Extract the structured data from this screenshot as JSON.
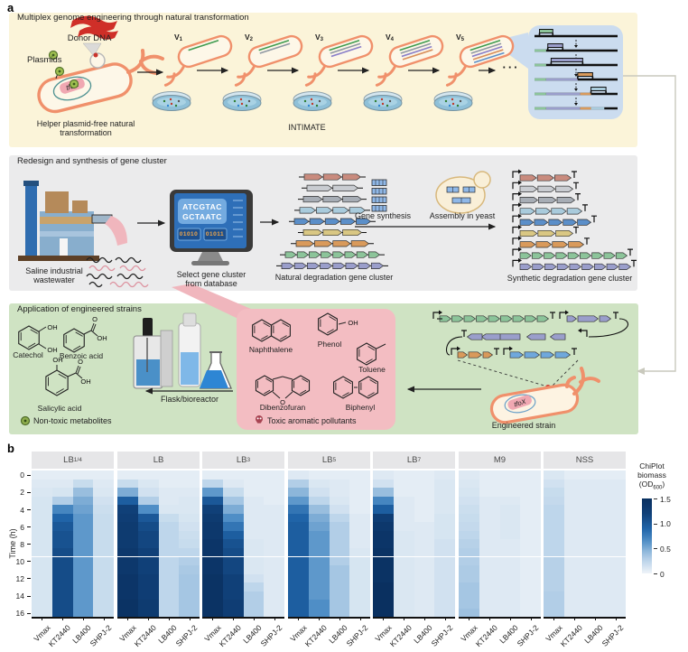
{
  "panel_a": {
    "label": "a",
    "genome_engineering": {
      "title": "Multiplex genome engineering through natural transformation",
      "donor_dna": "Donor DNA",
      "plasmids": "Plasmids",
      "tfox": "tfoX",
      "helper_line1": "Helper plasmid-free natural",
      "helper_line2": "transformation",
      "intimate": "INTIMATE",
      "ellipsis": "···",
      "variants": [
        {
          "base": "V",
          "sub": "1",
          "lines": 1
        },
        {
          "base": "V",
          "sub": "2",
          "lines": 2
        },
        {
          "base": "V",
          "sub": "3",
          "lines": 3
        },
        {
          "base": "V",
          "sub": "4",
          "lines": 4
        },
        {
          "base": "V",
          "sub": "5",
          "lines": 5
        }
      ],
      "variant_line_colors": [
        "#3f9b4f",
        "#8f98a3",
        "#8a7fc9",
        "#d98f5a",
        "#5b8fc9"
      ]
    },
    "redesign": {
      "title": "Redesign and synthesis of gene cluster",
      "wastewater_line1": "Saline industrial",
      "wastewater_line2": "wastewater",
      "screen_lines": [
        "ATCGTAC",
        "GCTAATC"
      ],
      "binary": [
        "01010",
        "01011"
      ],
      "select_line1": "Select gene cluster",
      "select_line2": "from database",
      "natural_label": "Natural degradation gene cluster",
      "gene_synthesis": "Gene synthesis",
      "assembly": "Assembly in yeast",
      "synthetic_label": "Synthetic degradation gene cluster",
      "cluster_colors": [
        "#c98b7e",
        "#c9ccd1",
        "#a7adb5",
        "#a9cbdc",
        "#5b8fc9",
        "#d9c783",
        "#d99a5b",
        "#8cc49a",
        "#9a9ecb"
      ],
      "natural_gene_counts": [
        3,
        2,
        3,
        4,
        5,
        3,
        4,
        8,
        8
      ],
      "synthetic_gene_counts": [
        3,
        3,
        3,
        4,
        5,
        3,
        4,
        9,
        9
      ],
      "natural_row_widths": [
        62,
        56,
        64,
        72,
        84,
        64,
        80,
        104,
        112
      ],
      "synthetic_row_widths": [
        56,
        58,
        60,
        68,
        78,
        58,
        70,
        118,
        122
      ]
    },
    "application": {
      "title": "Application of engineered strains",
      "metabolites": [
        {
          "name": "Catechol"
        },
        {
          "name": "Benzoic acid"
        },
        {
          "name": "Salicylic acid"
        }
      ],
      "functional_groups": {
        "oh": "OH",
        "o": "O"
      },
      "nontoxic": "Non-toxic metabolites",
      "flask": "Flask/bioreactor",
      "pollutants": [
        {
          "name": "Naphthalene"
        },
        {
          "name": "Phenol"
        },
        {
          "name": "Toluene"
        },
        {
          "name": "Dibenzofuran"
        },
        {
          "name": "Biphenyl"
        }
      ],
      "toxic": "Toxic aromatic pollutants",
      "engineered": "Engineered strain",
      "tfox": "tfoX"
    },
    "colors": {
      "band1": "#fbf4d9",
      "band2": "#ebebec",
      "band3": "#cfe3c3",
      "pink_box": "#f3bdc2",
      "inset": "#cbdcef",
      "bacterium_outline": "#f0906b",
      "bacterium_fill": "#fdf7e8"
    }
  },
  "chart_data": {
    "type": "heatmap",
    "panel_label": "b",
    "facets": [
      {
        "base": "LB",
        "sub": "1/4"
      },
      {
        "base": "LB",
        "sub": ""
      },
      {
        "base": "LB",
        "sub": "3"
      },
      {
        "base": "LB",
        "sub": "5"
      },
      {
        "base": "LB",
        "sub": "7"
      },
      {
        "base": "M9",
        "sub": ""
      },
      {
        "base": "NSS",
        "sub": ""
      }
    ],
    "strains": [
      "Vmax",
      "KT2440",
      "LB400",
      "SHPJ-2"
    ],
    "ylabel": "Time (h)",
    "y_ticks": [
      0,
      2,
      4,
      6,
      8,
      10,
      12,
      14,
      16
    ],
    "time_hours_range": [
      0,
      16
    ],
    "time_step_h": 1,
    "colorbar": {
      "title_line1": "ChiPlot",
      "title_line2": "biomass",
      "unit_base": "(OD",
      "unit_sub": "600",
      "unit_close": ")",
      "ticks": [
        "1.5",
        "1.0",
        "0.5",
        "0"
      ],
      "tick_values": [
        1.5,
        1.0,
        0.5,
        0
      ],
      "min": 0,
      "max": 1.5
    },
    "colorscale": [
      [
        0,
        "#eff4f9"
      ],
      [
        0.08,
        "#dee9f3"
      ],
      [
        0.25,
        "#bed6eb"
      ],
      [
        0.45,
        "#8cb6da"
      ],
      [
        0.65,
        "#4f8ec6"
      ],
      [
        0.9,
        "#2064a8"
      ],
      [
        1.2,
        "#104078"
      ],
      [
        1.5,
        "#0a3060"
      ]
    ],
    "values": [
      [
        [
          0.05,
          0.08,
          0.1,
          0.12,
          0.12,
          0.12,
          0.12,
          0.12,
          0.12,
          0.12,
          0.12,
          0.12,
          0.12,
          0.12,
          0.12,
          0.12,
          0.12
        ],
        [
          0.05,
          0.08,
          0.12,
          0.3,
          0.7,
          0.9,
          1.0,
          1.05,
          1.05,
          1.1,
          1.1,
          1.1,
          1.1,
          1.1,
          1.1,
          1.1,
          1.1
        ],
        [
          0.05,
          0.2,
          0.4,
          0.5,
          0.55,
          0.6,
          0.6,
          0.6,
          0.6,
          0.6,
          0.6,
          0.6,
          0.6,
          0.6,
          0.6,
          0.6,
          0.6
        ],
        [
          0.05,
          0.08,
          0.1,
          0.15,
          0.18,
          0.2,
          0.2,
          0.2,
          0.2,
          0.2,
          0.2,
          0.2,
          0.2,
          0.2,
          0.2,
          0.2,
          0.2
        ]
      ],
      [
        [
          0.05,
          0.2,
          0.5,
          0.95,
          1.2,
          1.25,
          1.3,
          1.3,
          1.3,
          1.35,
          1.35,
          1.35,
          1.4,
          1.4,
          1.4,
          1.45,
          1.45
        ],
        [
          0.05,
          0.1,
          0.15,
          0.3,
          0.65,
          1.0,
          1.1,
          1.15,
          1.15,
          1.2,
          1.2,
          1.2,
          1.25,
          1.25,
          1.25,
          1.3,
          1.3
        ],
        [
          0.05,
          0.05,
          0.08,
          0.08,
          0.1,
          0.2,
          0.25,
          0.25,
          0.25,
          0.25,
          0.25,
          0.25,
          0.25,
          0.25,
          0.25,
          0.25,
          0.25
        ],
        [
          0.05,
          0.05,
          0.08,
          0.1,
          0.1,
          0.12,
          0.15,
          0.18,
          0.2,
          0.25,
          0.3,
          0.33,
          0.35,
          0.35,
          0.35,
          0.35,
          0.35
        ]
      ],
      [
        [
          0.05,
          0.25,
          0.6,
          1.0,
          1.2,
          1.3,
          1.35,
          1.35,
          1.4,
          1.4,
          1.4,
          1.4,
          1.45,
          1.45,
          1.45,
          1.45,
          1.45
        ],
        [
          0.05,
          0.08,
          0.2,
          0.35,
          0.5,
          0.65,
          0.8,
          0.95,
          1.05,
          1.1,
          1.15,
          1.15,
          1.2,
          1.2,
          1.2,
          1.25,
          1.25
        ],
        [
          0.05,
          0.05,
          0.05,
          0.08,
          0.08,
          0.08,
          0.08,
          0.08,
          0.1,
          0.1,
          0.1,
          0.1,
          0.15,
          0.25,
          0.3,
          0.3,
          0.3
        ],
        [
          0.05,
          0.05,
          0.05,
          0.05,
          0.08,
          0.08,
          0.08,
          0.08,
          0.08,
          0.08,
          0.08,
          0.08,
          0.08,
          0.08,
          0.08,
          0.08,
          0.08
        ]
      ],
      [
        [
          0.08,
          0.3,
          0.45,
          0.6,
          0.8,
          0.9,
          0.95,
          0.95,
          0.95,
          0.95,
          0.95,
          0.95,
          0.95,
          0.95,
          0.95,
          0.95,
          0.95
        ],
        [
          0.05,
          0.1,
          0.15,
          0.25,
          0.4,
          0.5,
          0.55,
          0.6,
          0.6,
          0.6,
          0.6,
          0.6,
          0.6,
          0.6,
          0.6,
          0.65,
          0.65
        ],
        [
          0.05,
          0.08,
          0.08,
          0.1,
          0.15,
          0.25,
          0.3,
          0.3,
          0.3,
          0.3,
          0.3,
          0.35,
          0.35,
          0.35,
          0.35,
          0.35,
          0.35
        ],
        [
          0.05,
          0.05,
          0.05,
          0.05,
          0.05,
          0.08,
          0.08,
          0.08,
          0.08,
          0.1,
          0.12,
          0.12,
          0.12,
          0.12,
          0.12,
          0.12,
          0.12
        ]
      ],
      [
        [
          0.08,
          0.15,
          0.4,
          0.7,
          0.95,
          1.25,
          1.35,
          1.4,
          1.4,
          1.45,
          1.45,
          1.45,
          1.45,
          1.5,
          1.5,
          1.5,
          1.5
        ],
        [
          0.05,
          0.05,
          0.05,
          0.08,
          0.08,
          0.08,
          0.08,
          0.1,
          0.1,
          0.1,
          0.1,
          0.1,
          0.1,
          0.1,
          0.1,
          0.1,
          0.1
        ],
        [
          0.05,
          0.05,
          0.05,
          0.05,
          0.05,
          0.05,
          0.08,
          0.08,
          0.08,
          0.08,
          0.08,
          0.08,
          0.08,
          0.08,
          0.08,
          0.08,
          0.08
        ],
        [
          0.08,
          0.1,
          0.1,
          0.1,
          0.1,
          0.12,
          0.12,
          0.12,
          0.15,
          0.15,
          0.15,
          0.15,
          0.15,
          0.15,
          0.15,
          0.15,
          0.15
        ]
      ],
      [
        [
          0.08,
          0.1,
          0.12,
          0.15,
          0.18,
          0.2,
          0.22,
          0.25,
          0.28,
          0.3,
          0.3,
          0.32,
          0.32,
          0.35,
          0.35,
          0.35,
          0.38
        ],
        [
          0.05,
          0.05,
          0.05,
          0.08,
          0.08,
          0.08,
          0.08,
          0.08,
          0.08,
          0.08,
          0.08,
          0.08,
          0.08,
          0.08,
          0.08,
          0.08,
          0.08
        ],
        [
          0.05,
          0.05,
          0.05,
          0.08,
          0.1,
          0.1,
          0.1,
          0.1,
          0.08,
          0.08,
          0.08,
          0.08,
          0.08,
          0.08,
          0.08,
          0.08,
          0.08
        ],
        [
          0.05,
          0.05,
          0.05,
          0.05,
          0.05,
          0.05,
          0.05,
          0.05,
          0.05,
          0.05,
          0.05,
          0.05,
          0.05,
          0.05,
          0.05,
          0.05,
          0.05
        ]
      ],
      [
        [
          0.1,
          0.15,
          0.2,
          0.22,
          0.25,
          0.25,
          0.25,
          0.25,
          0.25,
          0.25,
          0.28,
          0.28,
          0.28,
          0.28,
          0.3,
          0.3,
          0.3
        ],
        [
          0.05,
          0.08,
          0.08,
          0.08,
          0.08,
          0.08,
          0.08,
          0.08,
          0.08,
          0.08,
          0.08,
          0.08,
          0.08,
          0.08,
          0.08,
          0.08,
          0.08
        ],
        [
          0.05,
          0.08,
          0.08,
          0.08,
          0.08,
          0.08,
          0.08,
          0.08,
          0.08,
          0.08,
          0.08,
          0.08,
          0.08,
          0.08,
          0.08,
          0.08,
          0.08
        ],
        [
          0.05,
          0.08,
          0.08,
          0.08,
          0.08,
          0.08,
          0.08,
          0.08,
          0.08,
          0.08,
          0.08,
          0.08,
          0.08,
          0.08,
          0.08,
          0.08,
          0.08
        ]
      ]
    ]
  }
}
